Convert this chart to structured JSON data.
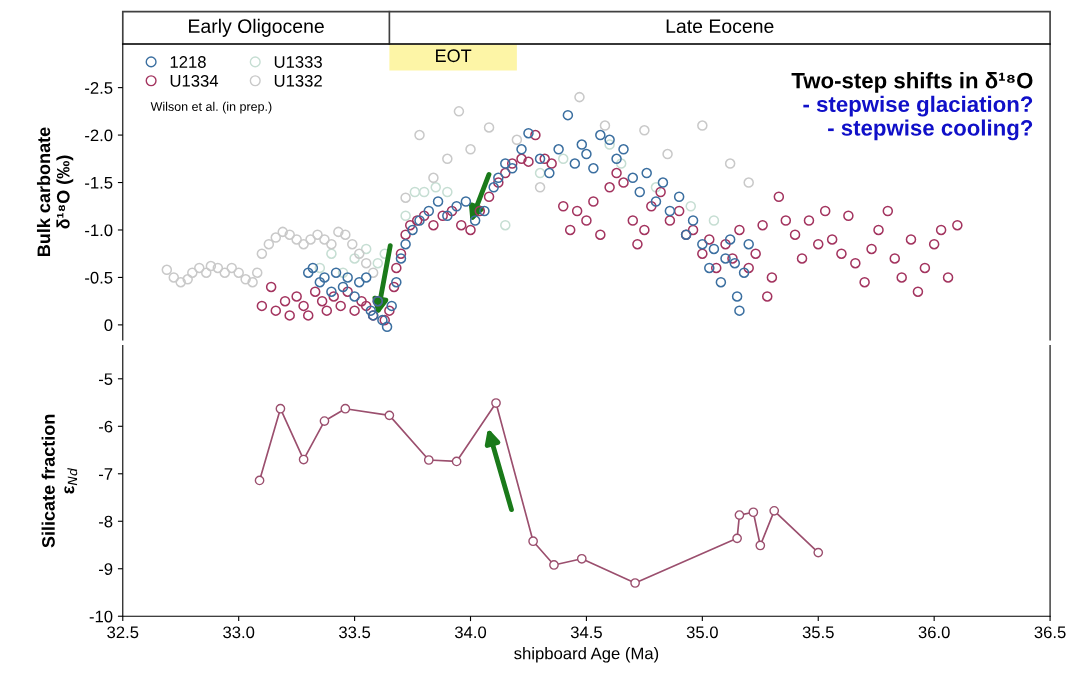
{
  "chart_data": [
    {
      "type": "scatter",
      "ylabel": "Bulk carbonate\nδ¹⁸O (‰)",
      "marker": "circle",
      "legend": "top left",
      "tick_labels": "y",
      "xlim": [
        32.5,
        36.5
      ],
      "xticks": [
        32.5,
        33,
        33.5,
        34,
        34.5,
        35,
        35.5,
        36,
        36.5
      ],
      "ylim": [
        0.16,
        -2.96
      ],
      "yticks": [
        0,
        -0.5,
        {
          "value": -1,
          "label": "-1.0"
        },
        -1.5,
        {
          "value": -2,
          "label": "-2.0"
        },
        -2.5
      ],
      "bands": [
        {
          "axis": "x",
          "from": 33.65,
          "to": 34.2,
          "label": "EOT",
          "color": "#fdf5a6"
        }
      ],
      "annotations": [
        "Early Oligocene",
        "Late Eocene",
        "Wilson et al. (in prep.)",
        "Two-step shifts in δ¹⁸O",
        "- stepwise glaciation?",
        "- stepwise cooling?"
      ],
      "series": [
        {
          "name": "1218",
          "color": "#3b6fa0",
          "x": [
            33.3,
            33.32,
            33.35,
            33.37,
            33.4,
            33.42,
            33.45,
            33.47,
            33.5,
            33.52,
            33.55,
            33.57,
            33.58,
            33.6,
            33.62,
            33.64,
            33.66,
            33.68,
            33.7,
            33.72,
            33.75,
            33.78,
            33.82,
            33.86,
            33.9,
            33.94,
            33.98,
            34.02,
            34.06,
            34.1,
            34.12,
            34.15,
            34.18,
            34.22,
            34.25,
            34.3,
            34.34,
            34.38,
            34.42,
            34.45,
            34.48,
            34.5,
            34.53,
            34.56,
            34.6,
            34.63,
            34.66,
            34.7,
            34.73,
            34.76,
            34.8,
            34.83,
            34.86,
            34.9,
            34.93,
            34.96,
            35.0,
            35.03,
            35.05,
            35.08,
            35.1,
            35.12,
            35.14,
            35.15,
            35.16,
            35.18,
            35.2
          ],
          "values": [
            -0.55,
            -0.6,
            -0.45,
            -0.5,
            -0.35,
            -0.55,
            -0.4,
            -0.5,
            -0.3,
            -0.45,
            -0.5,
            -0.15,
            -0.1,
            -0.25,
            -0.05,
            0.02,
            -0.2,
            -0.45,
            -0.7,
            -0.85,
            -1.0,
            -1.1,
            -1.2,
            -1.3,
            -1.15,
            -1.25,
            -1.3,
            -1.1,
            -1.2,
            -1.45,
            -1.55,
            -1.7,
            -1.65,
            -1.85,
            -2.02,
            -1.75,
            -1.6,
            -1.85,
            -2.21,
            -1.7,
            -1.9,
            -1.8,
            -1.65,
            -2.0,
            -1.95,
            -1.75,
            -1.85,
            -1.55,
            -1.4,
            -1.6,
            -1.3,
            -1.5,
            -1.2,
            -1.35,
            -0.95,
            -1.1,
            -0.85,
            -0.6,
            -0.8,
            -0.45,
            -0.7,
            -0.9,
            -0.65,
            -0.3,
            -0.15,
            -0.55,
            -0.85
          ]
        },
        {
          "name": "U1334",
          "color": "#a3345f",
          "x": [
            33.1,
            33.14,
            33.16,
            33.2,
            33.22,
            33.25,
            33.28,
            33.3,
            33.33,
            33.36,
            33.38,
            33.41,
            33.44,
            33.47,
            33.5,
            33.53,
            33.55,
            33.58,
            33.6,
            33.63,
            33.65,
            33.67,
            33.68,
            33.7,
            33.72,
            33.74,
            33.77,
            33.8,
            33.84,
            33.88,
            33.92,
            33.96,
            34.0,
            34.04,
            34.08,
            34.12,
            34.15,
            34.18,
            34.22,
            34.25,
            34.28,
            34.32,
            34.35,
            34.4,
            34.43,
            34.46,
            34.5,
            34.53,
            34.56,
            34.6,
            34.63,
            34.66,
            34.7,
            34.72,
            34.75,
            34.78,
            34.82,
            34.86,
            34.9,
            34.93,
            34.96,
            35.0,
            35.03,
            35.06,
            35.1,
            35.13,
            35.16,
            35.2,
            35.23,
            35.26,
            35.28,
            35.3,
            35.33,
            35.36,
            35.4,
            35.43,
            35.46,
            35.5,
            35.53,
            35.56,
            35.6,
            35.63,
            35.66,
            35.7,
            35.73,
            35.76,
            35.8,
            35.83,
            35.86,
            35.9,
            35.93,
            35.96,
            36.0,
            36.03,
            36.06,
            36.1
          ],
          "values": [
            -0.2,
            -0.4,
            -0.15,
            -0.25,
            -0.1,
            -0.3,
            -0.2,
            -0.1,
            -0.35,
            -0.25,
            -0.15,
            -0.3,
            -0.2,
            -0.35,
            -0.15,
            -0.25,
            -0.2,
            -0.1,
            -0.25,
            -0.05,
            -0.15,
            -0.4,
            -0.6,
            -0.75,
            -0.95,
            -1.05,
            -1.1,
            -1.15,
            -1.05,
            -1.15,
            -1.2,
            -1.05,
            -1.0,
            -1.2,
            -1.35,
            -1.5,
            -1.6,
            -1.7,
            -1.75,
            -1.72,
            -2.0,
            -1.75,
            -1.7,
            -1.25,
            -1.0,
            -1.2,
            -1.1,
            -1.3,
            -0.95,
            -1.45,
            -1.6,
            -1.5,
            -1.1,
            -0.85,
            -1.0,
            -1.25,
            -1.4,
            -1.1,
            -1.2,
            -0.95,
            -1.0,
            -0.75,
            -0.9,
            -0.6,
            -0.85,
            -0.7,
            -1.0,
            -0.6,
            -0.75,
            -1.05,
            -0.3,
            -0.5,
            -1.35,
            -1.1,
            -0.95,
            -0.7,
            -1.1,
            -0.85,
            -1.2,
            -0.9,
            -0.75,
            -1.15,
            -0.65,
            -0.45,
            -0.8,
            -1.0,
            -1.2,
            -0.7,
            -0.5,
            -0.9,
            -0.35,
            -0.6,
            -0.85,
            -1.0,
            -0.5,
            -1.05
          ]
        },
        {
          "name": "U1333",
          "color": "#c6ded3",
          "x": [
            33.35,
            33.4,
            33.45,
            33.5,
            33.55,
            33.6,
            33.63,
            33.72,
            33.76,
            33.8,
            33.85,
            33.9,
            34.15,
            34.3,
            34.4,
            34.6,
            34.65,
            34.8,
            34.95,
            35.05
          ],
          "values": [
            -0.6,
            -0.75,
            -0.55,
            -0.7,
            -0.8,
            -0.65,
            -0.75,
            -1.15,
            -1.4,
            -1.4,
            -1.45,
            -1.4,
            -1.05,
            -1.6,
            -1.75,
            -1.9,
            -1.7,
            -1.45,
            -1.25,
            -1.1
          ]
        },
        {
          "name": "U1332",
          "color": "#c9c9c9",
          "x": [
            32.69,
            32.72,
            32.75,
            32.78,
            32.8,
            32.83,
            32.86,
            32.88,
            32.91,
            32.94,
            32.97,
            33.0,
            33.03,
            33.06,
            33.08,
            33.1,
            33.13,
            33.16,
            33.19,
            33.22,
            33.25,
            33.28,
            33.31,
            33.34,
            33.37,
            33.4,
            33.43,
            33.46,
            33.49,
            33.52,
            33.55,
            33.58,
            33.72,
            33.78,
            33.84,
            33.9,
            33.95,
            34.0,
            34.08,
            34.2,
            34.3,
            34.47,
            34.58,
            34.75,
            34.85,
            35.0,
            35.12,
            35.2
          ],
          "values": [
            -0.58,
            -0.5,
            -0.45,
            -0.48,
            -0.55,
            -0.6,
            -0.55,
            -0.62,
            -0.6,
            -0.55,
            -0.6,
            -0.55,
            -0.48,
            -0.45,
            -0.55,
            -0.75,
            -0.85,
            -0.92,
            -0.98,
            -0.95,
            -0.9,
            -0.85,
            -0.9,
            -0.95,
            -0.9,
            -0.85,
            -0.98,
            -0.95,
            -0.85,
            -0.75,
            -0.65,
            -0.55,
            -1.34,
            -2.0,
            -1.55,
            -1.75,
            -2.25,
            -1.85,
            -2.08,
            -1.95,
            -1.45,
            -2.4,
            -2.1,
            -2.05,
            -1.8,
            -2.1,
            -1.7,
            -1.5
          ]
        }
      ]
    },
    {
      "type": "line",
      "xlabel": "shipboard Age (Ma)",
      "ylabel": "Silicate fraction\nε$_{Nd}$",
      "marker": "circle",
      "xlim": [
        32.5,
        36.5
      ],
      "xticks": [
        32.5,
        {
          "value": 33,
          "label": "33.0"
        },
        33.5,
        {
          "value": 34,
          "label": "34.0"
        },
        34.5,
        {
          "value": 35,
          "label": "35.0"
        },
        35.5,
        {
          "value": 36,
          "label": "36.0"
        },
        36.5
      ],
      "ylim": [
        -10,
        -4.3
      ],
      "yticks": [
        -10,
        -9,
        -8,
        -7,
        -6,
        -5
      ],
      "series": [
        {
          "color": "#9b4f6e",
          "x": [
            33.09,
            33.18,
            33.28,
            33.37,
            33.46,
            33.65,
            33.82,
            33.94,
            34.11,
            34.27,
            34.36,
            34.48,
            34.71,
            35.15,
            35.16,
            35.22,
            35.25,
            35.31,
            35.5
          ],
          "values": [
            -7.14,
            -5.63,
            -6.7,
            -5.89,
            -5.63,
            -5.77,
            -6.71,
            -6.74,
            -5.51,
            -8.42,
            -8.92,
            -8.79,
            -9.3,
            -8.36,
            -7.87,
            -7.81,
            -8.51,
            -7.78,
            -8.66
          ]
        }
      ]
    }
  ]
}
